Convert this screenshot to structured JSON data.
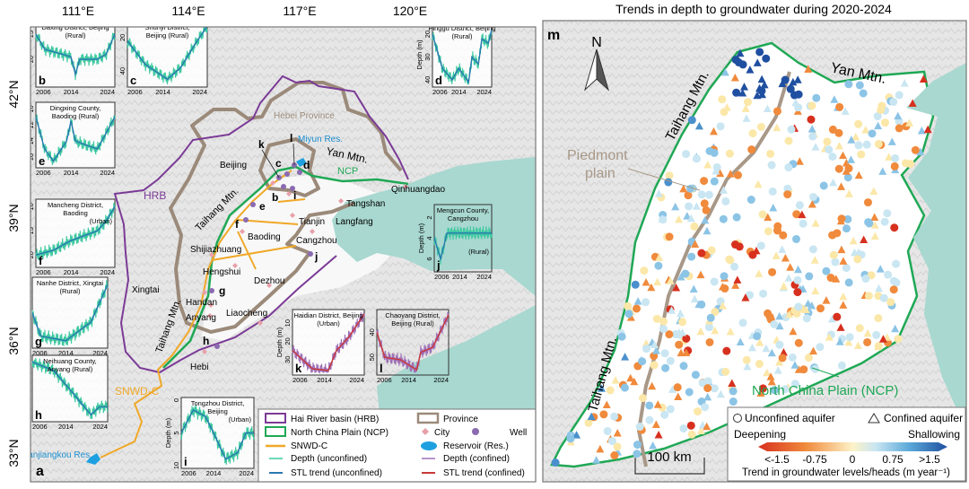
{
  "panel_a": {
    "letter": "a",
    "lon_ticks": [
      "111°E",
      "114°E",
      "117°E",
      "120°E"
    ],
    "lat_ticks": [
      "42°N",
      "39°N",
      "36°N",
      "33°N"
    ],
    "region_labels": {
      "hrb": "HRB",
      "hebei": "Hebei Province",
      "miyun": "Miyun Res.",
      "yan": "Yan Mtn.",
      "ncp": "NCP",
      "taihang1": "Taihang Mtn.",
      "taihang2": "Taihang Mtn.",
      "snwd": "SNWD-C",
      "danjiangkou": "Danjiangkou Res."
    },
    "cities": [
      "Beijing",
      "Tianjin",
      "Langfang",
      "Tangshan",
      "Qinhuangdao",
      "Baoding",
      "Shijiazhuang",
      "Cangzhou",
      "Hengshui",
      "Dezhou",
      "Xingtai",
      "Handan",
      "Anyang",
      "Liaocheng",
      "Hebi"
    ],
    "well_letters": [
      "b",
      "c",
      "d",
      "e",
      "f",
      "g",
      "h",
      "i",
      "j",
      "k",
      "l"
    ],
    "legend": {
      "hrb": "Hai River basin (HRB)",
      "province": "Province",
      "ncp": "North China Plain (NCP)",
      "city": "City",
      "well": "Well",
      "snwd": "SNWD-C",
      "reservoir": "Reservoir (Res.)",
      "depth_unconfined": "Depth (unconfined)",
      "depth_confined": "Depth (confined)",
      "stl_unconfined": "STL trend (unconfined)",
      "stl_confined": "STL trend (confined)"
    },
    "colors": {
      "hrb": "#7b3a96",
      "province": "#9b8a7a",
      "ncp": "#1fa855",
      "snwd": "#f0a828",
      "city": "#e8a0a8",
      "well": "#8a6ab0",
      "reservoir": "#1ea0e0",
      "sea": "#a8d8d0",
      "depth_unconfined": "#3cc8a0",
      "stl_unconfined": "#2a78b0",
      "depth_confined": "#a070b8",
      "stl_confined": "#c83838"
    }
  },
  "chart_data": [
    {
      "type": "line",
      "letter": "b",
      "title": "Daxing District, Beijing",
      "subtitle": "(Rural)",
      "ylabel": "Depth (m)",
      "yticks": [
        15,
        20
      ],
      "ylim": [
        13,
        25
      ],
      "xticks": [
        2006,
        2014,
        2024
      ],
      "aquifer": "unconfined",
      "trend": [
        [
          2006,
          15
        ],
        [
          2008,
          18
        ],
        [
          2012,
          19
        ],
        [
          2014,
          19.5
        ],
        [
          2015,
          23
        ],
        [
          2016,
          20
        ],
        [
          2020,
          20
        ],
        [
          2022,
          19
        ],
        [
          2024,
          15
        ]
      ]
    },
    {
      "type": "line",
      "letter": "c",
      "title": "Shunyi District,",
      "subtitle": "Beijing (Rural)",
      "ylabel": "",
      "yticks": [
        20,
        40
      ],
      "ylim": [
        12,
        48
      ],
      "xticks": [
        2006,
        2014,
        2024
      ],
      "aquifer": "unconfined",
      "trend": [
        [
          2006,
          22
        ],
        [
          2010,
          36
        ],
        [
          2015,
          45
        ],
        [
          2018,
          38
        ],
        [
          2021,
          25
        ],
        [
          2024,
          13
        ]
      ]
    },
    {
      "type": "line",
      "letter": "d",
      "title": "Pinggu District, Beijing",
      "subtitle": "(Rural)",
      "ylabel": "Depth (m)",
      "yticks": [
        20,
        30,
        40
      ],
      "ylim": [
        16,
        42
      ],
      "xticks": [
        2006,
        2014,
        2024
      ],
      "aquifer": "unconfined",
      "trend": [
        [
          2006,
          20
        ],
        [
          2009,
          35
        ],
        [
          2012,
          40
        ],
        [
          2014,
          35
        ],
        [
          2017,
          41
        ],
        [
          2018,
          30
        ],
        [
          2020,
          33
        ],
        [
          2021,
          22
        ],
        [
          2023,
          24
        ],
        [
          2024,
          18
        ]
      ]
    },
    {
      "type": "line",
      "letter": "e",
      "title": "Dingxing County,",
      "subtitle": "Baoding     (Rural)",
      "ylabel": "Depth (m)",
      "yticks": [
        10,
        12,
        14,
        16
      ],
      "ylim": [
        9.5,
        17
      ],
      "xticks": [
        2006,
        2014,
        2024
      ],
      "aquifer": "unconfined",
      "trend": [
        [
          2006,
          11
        ],
        [
          2008,
          15
        ],
        [
          2010,
          16.5
        ],
        [
          2013,
          14
        ],
        [
          2014,
          11.5
        ],
        [
          2015,
          14
        ],
        [
          2020,
          15
        ],
        [
          2022,
          13
        ],
        [
          2024,
          11
        ]
      ]
    },
    {
      "type": "line",
      "letter": "f",
      "title": "Mancheng District,",
      "subtitle": "Baoding",
      "subtitle2": "(Urban)",
      "ylabel": "Depth (m)",
      "yticks": [
        10,
        15,
        20
      ],
      "ylim": [
        9,
        22
      ],
      "xticks": [
        2006,
        2014,
        2024
      ],
      "aquifer": "unconfined",
      "trend": [
        [
          2006,
          20
        ],
        [
          2010,
          19
        ],
        [
          2014,
          17
        ],
        [
          2020,
          15
        ],
        [
          2022,
          13
        ],
        [
          2024,
          10
        ]
      ]
    },
    {
      "type": "line",
      "letter": "g",
      "title": "Nanhe District, Xingtai",
      "subtitle": "(Rural)",
      "ylabel": "Depth (m)",
      "yticks": [
        14,
        20,
        26
      ],
      "ylim": [
        13,
        27
      ],
      "xticks": [
        2006,
        2014,
        2024
      ],
      "aquifer": "unconfined",
      "trend": [
        [
          2006,
          20
        ],
        [
          2008,
          25
        ],
        [
          2014,
          26
        ],
        [
          2017,
          24
        ],
        [
          2020,
          22
        ],
        [
          2024,
          14
        ]
      ]
    },
    {
      "type": "line",
      "letter": "h",
      "title": "Neihuang County,",
      "subtitle": "Anyang  (Rural)",
      "ylabel": "Depth (m)",
      "yticks": [
        27,
        30,
        33
      ],
      "ylim": [
        26.5,
        34
      ],
      "xticks": [
        2006,
        2014,
        2024
      ],
      "aquifer": "unconfined",
      "trend": [
        [
          2006,
          27
        ],
        [
          2011,
          28
        ],
        [
          2016,
          31
        ],
        [
          2020,
          33.5
        ],
        [
          2022,
          32.5
        ],
        [
          2024,
          32.5
        ]
      ]
    },
    {
      "type": "line",
      "letter": "i",
      "title": "Tongzhou District,",
      "subtitle": "Beijing",
      "subtitle2": "(Urban)",
      "ylabel": "Depth (m)",
      "yticks": [
        0,
        5,
        10
      ],
      "ylim": [
        0,
        10
      ],
      "xticks": [
        2006,
        2014,
        2024
      ],
      "aquifer": "unconfined",
      "trend": [
        [
          2006,
          5
        ],
        [
          2009,
          1.5
        ],
        [
          2012,
          2.5
        ],
        [
          2014,
          5
        ],
        [
          2017,
          9
        ],
        [
          2020,
          8
        ],
        [
          2022,
          5
        ],
        [
          2024,
          5
        ]
      ]
    },
    {
      "type": "line",
      "letter": "j",
      "title": "Mengcun County,",
      "subtitle": "Cangzhou",
      "subtitle2": "(Rural)",
      "ylabel": "Depth (m)",
      "yticks": [
        2,
        4,
        6
      ],
      "ylim": [
        1,
        7
      ],
      "xticks": [
        2006,
        2014,
        2024
      ],
      "aquifer": "unconfined",
      "trend": [
        [
          2006,
          4
        ],
        [
          2008,
          6
        ],
        [
          2010,
          3.5
        ],
        [
          2014,
          3.5
        ],
        [
          2020,
          3.5
        ],
        [
          2024,
          3.5
        ]
      ]
    },
    {
      "type": "line",
      "letter": "k",
      "title": "Haidian District, Beijing",
      "subtitle": "(Urban)",
      "ylabel": "Depth (m)",
      "yticks": [
        10,
        20,
        30
      ],
      "ylim": [
        4,
        37
      ],
      "xticks": [
        2006,
        2014,
        2024
      ],
      "aquifer": "confined",
      "trend": [
        [
          2006,
          25
        ],
        [
          2011,
          35
        ],
        [
          2015,
          36
        ],
        [
          2017,
          25
        ],
        [
          2020,
          18
        ],
        [
          2024,
          5
        ]
      ]
    },
    {
      "type": "line",
      "letter": "l",
      "title": "Chaoyang District,",
      "subtitle": "Beijing (Rural)",
      "ylabel": "",
      "yticks": [
        40,
        50
      ],
      "ylim": [
        32,
        56
      ],
      "xticks": [
        2006,
        2014,
        2024
      ],
      "aquifer": "confined",
      "trend": [
        [
          2006,
          40
        ],
        [
          2008,
          50
        ],
        [
          2012,
          51
        ],
        [
          2016,
          55
        ],
        [
          2017,
          48
        ],
        [
          2020,
          46
        ],
        [
          2024,
          33
        ]
      ]
    }
  ],
  "panel_m": {
    "title": "Trends in depth to groundwater during 2020-2024",
    "letter": "m",
    "north": "N",
    "labels": {
      "yan": "Yan Mtn.",
      "taihang1": "Taihang Mtn.",
      "piedmont1": "Piedmont",
      "piedmont2": "plain",
      "taihang2": "Taihang Mtn.",
      "ncp": "North China Plain (NCP)"
    },
    "scale_bar": "100 km",
    "legend": {
      "unconfined": "Unconfined aquifer",
      "confined": "Confined aquifer",
      "deepening": "Deepening",
      "shallowing": "Shallowing",
      "ticks": [
        "<-1.5",
        "-0.75",
        "0",
        "0.75",
        ">1.5"
      ],
      "title": "Trend in groundwater levels/heads (m year⁻¹)",
      "range": [
        -1.5,
        1.5
      ],
      "colormap": [
        "#d7301f",
        "#f08a3c",
        "#fde9a0",
        "#c9e6f2",
        "#5aa8d8",
        "#1f4fa0"
      ]
    }
  }
}
